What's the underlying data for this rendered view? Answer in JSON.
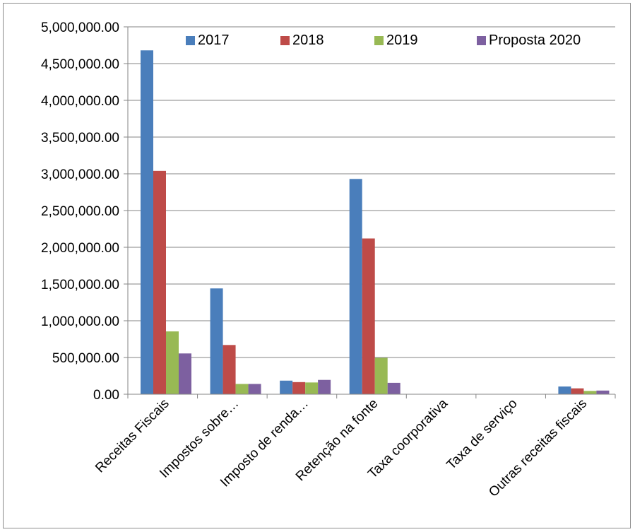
{
  "chart_data": {
    "type": "bar",
    "title": "",
    "xlabel": "",
    "ylabel": "",
    "ylim": [
      0,
      5000000
    ],
    "yticks": [
      0,
      500000,
      1000000,
      1500000,
      2000000,
      2500000,
      3000000,
      3500000,
      4000000,
      4500000,
      5000000
    ],
    "ytick_labels": [
      "0.00",
      "500,000.00",
      "1,000,000.00",
      "1,500,000.00",
      "2,000,000.00",
      "2,500,000.00",
      "3,000,000.00",
      "3,500,000.00",
      "4,000,000.00",
      "4,500,000.00",
      "5,000,000.00"
    ],
    "categories": [
      "Receitas Fiscais",
      "Impostos sobre…",
      "Imposto de renda…",
      "Retenção na fonte",
      "Taxa coorporativa",
      "Taxa de serviço",
      "Outras receitas fiscais"
    ],
    "series": [
      {
        "name": "2017",
        "color": "#4a7ebb",
        "values": [
          4680000,
          1440000,
          185000,
          2930000,
          5000,
          0,
          105000
        ]
      },
      {
        "name": "2018",
        "color": "#be4b48",
        "values": [
          3040000,
          670000,
          165000,
          2120000,
          0,
          0,
          80000
        ]
      },
      {
        "name": "2019",
        "color": "#98b954",
        "values": [
          855000,
          140000,
          160000,
          495000,
          0,
          0,
          45000
        ]
      },
      {
        "name": "Proposta 2020",
        "color": "#7d60a0",
        "values": [
          555000,
          140000,
          195000,
          155000,
          0,
          0,
          50000
        ]
      }
    ],
    "grid": true,
    "legend_position": "top-right"
  }
}
